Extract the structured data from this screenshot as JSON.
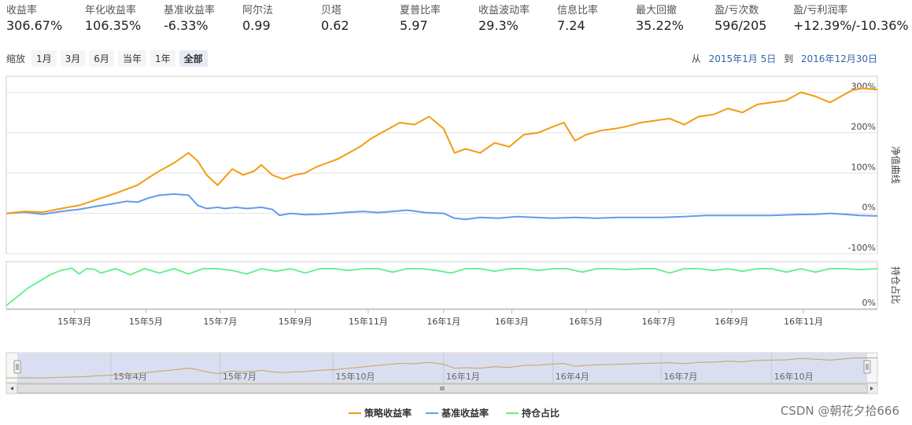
{
  "stats": [
    {
      "label": "收益率",
      "value": "306.67%"
    },
    {
      "label": "年化收益率",
      "value": "106.35%"
    },
    {
      "label": "基准收益率",
      "value": "-6.33%"
    },
    {
      "label": "阿尔法",
      "value": "0.99"
    },
    {
      "label": "贝塔",
      "value": "0.62"
    },
    {
      "label": "夏普比率",
      "value": "5.97"
    },
    {
      "label": "收益波动率",
      "value": "29.3%"
    },
    {
      "label": "信息比率",
      "value": "7.24"
    },
    {
      "label": "最大回撤",
      "value": "35.22%"
    },
    {
      "label": "盈/亏次数",
      "value": "596/205"
    },
    {
      "label": "盈/亏利润率",
      "value": "+12.39%/-10.36%"
    }
  ],
  "zoom": {
    "label": "缩放",
    "buttons": [
      "1月",
      "3月",
      "6月",
      "当年",
      "1年",
      "全部"
    ],
    "active": "全部"
  },
  "range": {
    "from_label": "从",
    "from": "2015年1月 5日",
    "to_label": "到",
    "to": "2016年12月30日"
  },
  "watermark": "CSDN @朝花夕拾666",
  "chart_data": {
    "type": "line",
    "main_axis_label": "净值曲线",
    "main_ticks": [
      "300%",
      "200%",
      "100%",
      "0%",
      "-100%"
    ],
    "main_ylim": [
      -100,
      340
    ],
    "pos_axis_label": "持仓占比",
    "pos_ticks": [
      "0%"
    ],
    "pos_ylim": [
      0,
      100
    ],
    "x_ticks": [
      "15年3月",
      "15年5月",
      "15年7月",
      "15年9月",
      "15年11月",
      "16年1月",
      "16年3月",
      "16年5月",
      "16年7月",
      "16年9月",
      "16年11月"
    ],
    "x_tick_month_index": [
      1.87,
      3.83,
      5.87,
      7.93,
      9.93,
      12.0,
      13.87,
      15.9,
      17.9,
      19.9,
      21.87
    ],
    "nav_ticks": [
      "15年4月",
      "15年7月",
      "15年10月",
      "16年1月",
      "16年4月",
      "16年7月",
      "16年10月"
    ],
    "nav_tick_month_index": [
      2.87,
      5.87,
      8.97,
      12.0,
      15.0,
      17.97,
      21.0
    ],
    "x_range_months": [
      0,
      23.9
    ],
    "legend": [
      "策略收益率",
      "基准收益率",
      "持仓占比"
    ],
    "series": [
      {
        "name": "策略收益率",
        "color": "#f39c12",
        "x": [
          0,
          0.5,
          1.0,
          1.5,
          2.0,
          2.5,
          3.0,
          3.3,
          3.6,
          3.9,
          4.2,
          4.6,
          5.0,
          5.25,
          5.5,
          5.8,
          6.0,
          6.2,
          6.5,
          6.8,
          7.0,
          7.3,
          7.6,
          7.9,
          8.2,
          8.5,
          8.8,
          9.1,
          9.4,
          9.7,
          10.0,
          10.4,
          10.8,
          11.2,
          11.6,
          12.0,
          12.3,
          12.6,
          13.0,
          13.4,
          13.8,
          14.2,
          14.6,
          15.0,
          15.3,
          15.6,
          15.9,
          16.3,
          16.7,
          17.0,
          17.4,
          17.8,
          18.2,
          18.6,
          19.0,
          19.4,
          19.8,
          20.2,
          20.6,
          21.0,
          21.4,
          21.8,
          22.2,
          22.6,
          22.9,
          23.2,
          23.5,
          23.9
        ],
        "y": [
          0,
          5,
          3,
          12,
          20,
          35,
          50,
          60,
          70,
          88,
          105,
          125,
          150,
          130,
          95,
          70,
          90,
          110,
          95,
          105,
          120,
          95,
          85,
          95,
          100,
          115,
          125,
          135,
          150,
          165,
          185,
          205,
          225,
          220,
          240,
          210,
          150,
          160,
          150,
          175,
          165,
          195,
          200,
          215,
          225,
          180,
          195,
          205,
          210,
          215,
          225,
          230,
          235,
          220,
          240,
          245,
          260,
          250,
          270,
          275,
          280,
          300,
          290,
          275,
          290,
          305,
          310,
          306.67
        ]
      },
      {
        "name": "基准收益率",
        "color": "#6699ee",
        "x": [
          0,
          0.5,
          1.0,
          1.5,
          2.0,
          2.5,
          3.0,
          3.3,
          3.6,
          3.9,
          4.2,
          4.6,
          5.0,
          5.25,
          5.5,
          5.8,
          6.0,
          6.3,
          6.6,
          7.0,
          7.3,
          7.5,
          7.8,
          8.2,
          8.6,
          9.0,
          9.4,
          9.8,
          10.2,
          10.6,
          11.0,
          11.5,
          12.0,
          12.3,
          12.6,
          13.0,
          13.5,
          14.0,
          14.5,
          15.0,
          15.6,
          16.2,
          16.8,
          17.4,
          18.0,
          18.6,
          19.2,
          19.8,
          20.4,
          21.0,
          21.6,
          22.2,
          22.6,
          23.0,
          23.4,
          23.9
        ],
        "y": [
          0,
          3,
          -2,
          5,
          10,
          18,
          25,
          30,
          28,
          38,
          45,
          48,
          45,
          20,
          12,
          15,
          12,
          15,
          12,
          15,
          10,
          -5,
          0,
          -3,
          -2,
          0,
          3,
          5,
          2,
          5,
          8,
          2,
          0,
          -12,
          -15,
          -10,
          -12,
          -8,
          -10,
          -12,
          -10,
          -12,
          -10,
          -10,
          -10,
          -8,
          -5,
          -5,
          -5,
          -5,
          -3,
          -2,
          0,
          -2,
          -5,
          -6.33
        ]
      },
      {
        "name": "持仓占比",
        "color": "#5cf08a",
        "x": [
          0,
          0.3,
          0.6,
          0.9,
          1.2,
          1.5,
          1.8,
          2.0,
          2.2,
          2.4,
          2.6,
          3.0,
          3.4,
          3.8,
          4.2,
          4.6,
          5.0,
          5.4,
          5.8,
          6.2,
          6.6,
          7.0,
          7.4,
          7.8,
          8.2,
          8.6,
          9.0,
          9.4,
          9.8,
          10.2,
          10.6,
          11.0,
          11.4,
          11.8,
          12.2,
          12.6,
          13.0,
          13.4,
          13.8,
          14.2,
          14.6,
          15.0,
          15.4,
          15.8,
          16.2,
          16.6,
          17.0,
          17.4,
          17.8,
          18.2,
          18.6,
          19.0,
          19.4,
          19.8,
          20.2,
          20.6,
          21.0,
          21.4,
          21.8,
          22.2,
          22.6,
          23.0,
          23.4,
          23.9
        ],
        "y": [
          0,
          20,
          40,
          55,
          70,
          80,
          85,
          72,
          84,
          83,
          74,
          84,
          70,
          84,
          74,
          84,
          72,
          84,
          84,
          80,
          72,
          84,
          78,
          84,
          74,
          84,
          84,
          80,
          84,
          84,
          76,
          84,
          84,
          80,
          74,
          84,
          84,
          78,
          84,
          84,
          80,
          84,
          84,
          76,
          84,
          84,
          82,
          84,
          84,
          74,
          84,
          84,
          80,
          84,
          78,
          84,
          84,
          76,
          84,
          76,
          84,
          84,
          82,
          84
        ]
      }
    ]
  }
}
